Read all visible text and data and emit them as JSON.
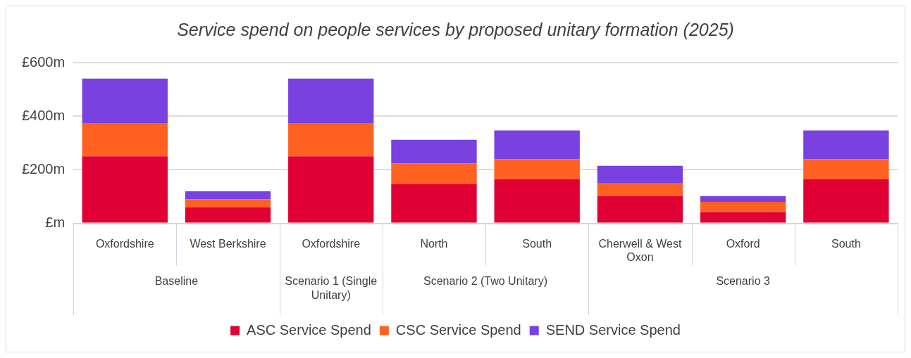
{
  "chart_data": {
    "type": "bar",
    "title": "Service spend on people services by proposed unitary formation (2025)",
    "categories": [
      "Oxfordshire",
      "West Berkshire",
      "Oxfordshire",
      "North",
      "South",
      "Cherwell & West Oxon",
      "Oxford",
      "South"
    ],
    "annotations": [
      "Baseline",
      "Scenario 1 (Single Unitary)",
      "Scenario 2 (Two Unitary)",
      "Scenario 3"
    ],
    "series": [
      {
        "name": "ASC Service Spend",
        "color": "#e10033",
        "values": [
          250,
          59,
          250,
          146,
          165,
          102,
          42,
          165
        ]
      },
      {
        "name": "CSC Service Spend",
        "color": "#ff6121",
        "values": [
          122,
          31,
          122,
          78,
          74,
          49,
          38,
          74
        ]
      },
      {
        "name": "SEND Service Spend",
        "color": "#7841e0",
        "values": [
          168,
          30,
          168,
          88,
          108,
          64,
          22,
          108
        ]
      }
    ],
    "stacked": true,
    "ylim": [
      0,
      600
    ],
    "yticks": [
      {
        "value": 0,
        "label": "£m"
      },
      {
        "value": 200,
        "label": "£200m"
      },
      {
        "value": 400,
        "label": "£400m"
      },
      {
        "value": 600,
        "label": "£600m"
      }
    ],
    "grid": "y",
    "legend": "bottom"
  }
}
